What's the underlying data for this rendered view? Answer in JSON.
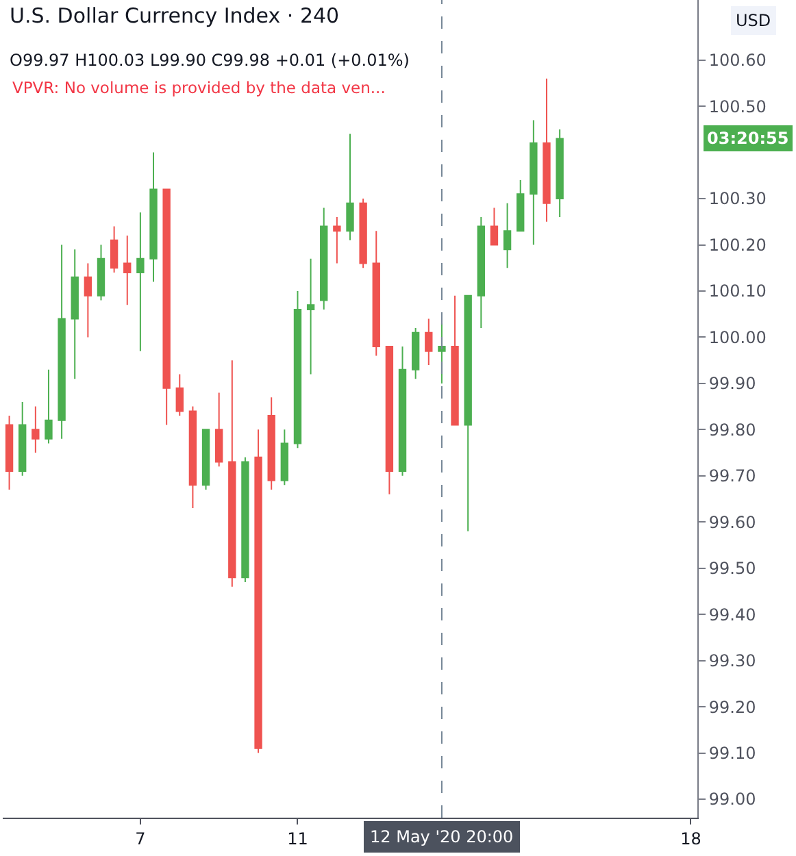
{
  "chart_data": {
    "type": "candlestick",
    "title": "U.S. Dollar Currency Index · 240",
    "subtitle": "O99.97 H100.03 L99.90 C99.98 +0.01 (+0.01%)",
    "ylabel": "USD",
    "annotations": [
      "VPVR: No volume is provided by the data ven...",
      "03:20:55"
    ],
    "categories": [
      null,
      null,
      null,
      null,
      null,
      null,
      null,
      null,
      null,
      null,
      "7",
      null,
      null,
      null,
      null,
      null,
      null,
      null,
      null,
      null,
      null,
      null,
      "11",
      null,
      null,
      null,
      null,
      null,
      null,
      null,
      null,
      null,
      null,
      "12 May '20 20:00",
      null,
      null,
      null,
      null,
      null,
      null,
      null,
      null,
      null,
      null,
      null,
      null,
      null,
      null,
      null,
      null,
      null,
      null,
      "18"
    ],
    "ohlc": [
      [
        99.81,
        99.83,
        99.67,
        99.71
      ],
      [
        99.71,
        99.86,
        99.7,
        99.81
      ],
      [
        99.8,
        99.85,
        99.75,
        99.78
      ],
      [
        99.78,
        99.93,
        99.77,
        99.82
      ],
      [
        99.82,
        100.2,
        99.78,
        100.04
      ],
      [
        100.04,
        100.19,
        99.91,
        100.13
      ],
      [
        100.13,
        100.16,
        100.0,
        100.09
      ],
      [
        100.09,
        100.2,
        100.08,
        100.17
      ],
      [
        100.21,
        100.24,
        100.14,
        100.15
      ],
      [
        100.16,
        100.22,
        100.07,
        100.14
      ],
      [
        100.14,
        100.27,
        99.97,
        100.17
      ],
      [
        100.17,
        100.4,
        100.12,
        100.32
      ],
      [
        100.32,
        100.32,
        99.81,
        99.89
      ],
      [
        99.89,
        99.92,
        99.83,
        99.84
      ],
      [
        99.84,
        99.85,
        99.63,
        99.68
      ],
      [
        99.68,
        99.8,
        99.67,
        99.8
      ],
      [
        99.8,
        99.88,
        99.72,
        99.73
      ],
      [
        99.73,
        99.95,
        99.46,
        99.48
      ],
      [
        99.48,
        99.74,
        99.47,
        99.73
      ],
      [
        99.74,
        99.8,
        99.1,
        99.11
      ],
      [
        99.83,
        99.87,
        99.67,
        99.69
      ],
      [
        99.69,
        99.8,
        99.68,
        99.77
      ],
      [
        99.77,
        100.1,
        99.76,
        100.06
      ],
      [
        100.06,
        100.17,
        99.92,
        100.07
      ],
      [
        100.08,
        100.28,
        100.06,
        100.24
      ],
      [
        100.24,
        100.26,
        100.16,
        100.23
      ],
      [
        100.23,
        100.44,
        100.21,
        100.29
      ],
      [
        100.29,
        100.3,
        100.15,
        100.16
      ],
      [
        100.16,
        100.23,
        99.96,
        99.98
      ],
      [
        99.98,
        99.98,
        99.66,
        99.71
      ],
      [
        99.71,
        99.98,
        99.7,
        99.93
      ],
      [
        99.93,
        100.02,
        99.91,
        100.01
      ],
      [
        100.01,
        100.04,
        99.94,
        99.97
      ],
      [
        99.97,
        100.03,
        99.9,
        99.98
      ],
      [
        99.98,
        100.09,
        99.81,
        99.81
      ],
      [
        99.81,
        100.09,
        99.58,
        100.09
      ],
      [
        100.09,
        100.26,
        100.02,
        100.24
      ],
      [
        100.24,
        100.28,
        100.2,
        100.2
      ],
      [
        100.19,
        100.29,
        100.15,
        100.23
      ],
      [
        100.23,
        100.34,
        100.23,
        100.31
      ],
      [
        100.31,
        100.47,
        100.2,
        100.42
      ],
      [
        100.42,
        100.56,
        100.25,
        100.29
      ],
      [
        100.3,
        100.45,
        100.26,
        100.43
      ],
      null,
      null,
      null,
      null,
      null,
      null,
      null,
      null,
      null,
      null
    ],
    "colors": [
      "#ef5350",
      "#4caf50",
      "#ef5350",
      "#4caf50",
      "#4caf50",
      "#4caf50",
      "#ef5350",
      "#4caf50",
      "#ef5350",
      "#ef5350",
      "#4caf50",
      "#4caf50",
      "#ef5350",
      "#ef5350",
      "#ef5350",
      "#4caf50",
      "#ef5350",
      "#ef5350",
      "#4caf50",
      "#ef5350",
      "#ef5350",
      "#4caf50",
      "#4caf50",
      "#4caf50",
      "#4caf50",
      "#ef5350",
      "#4caf50",
      "#ef5350",
      "#ef5350",
      "#ef5350",
      "#4caf50",
      "#4caf50",
      "#ef5350",
      "#4caf50",
      "#ef5350",
      "#4caf50",
      "#4caf50",
      "#ef5350",
      "#4caf50",
      "#4caf50",
      "#4caf50",
      "#ef5350",
      "#4caf50",
      null,
      null,
      null,
      null,
      null,
      null,
      null,
      null,
      null,
      null
    ],
    "ylim": [
      98.96,
      100.73
    ],
    "yticks": [
      {
        "value": 99,
        "label": "99.00"
      },
      {
        "value": 99.1,
        "label": "99.10"
      },
      {
        "value": 99.2,
        "label": "99.20"
      },
      {
        "value": 99.3,
        "label": "99.30"
      },
      {
        "value": 99.4,
        "label": "99.40"
      },
      {
        "value": 99.5,
        "label": "99.50"
      },
      {
        "value": 99.6,
        "label": "99.60"
      },
      {
        "value": 99.7,
        "label": "99.70"
      },
      {
        "value": 99.8,
        "label": "99.80"
      },
      {
        "value": 99.9,
        "label": "99.90"
      },
      {
        "value": 100,
        "label": "100.00"
      },
      {
        "value": 100.1,
        "label": "100.10"
      },
      {
        "value": 100.2,
        "label": "100.20"
      },
      {
        "value": 100.3,
        "label": "100.30"
      },
      {
        "value": 100.5,
        "label": "100.50"
      },
      {
        "value": 100.6,
        "label": "100.60"
      }
    ],
    "ref_lines": [
      {
        "axis": "x",
        "value": "12 May '20 20:00",
        "line_style": "dashed",
        "color": "#758696"
      }
    ]
  }
}
